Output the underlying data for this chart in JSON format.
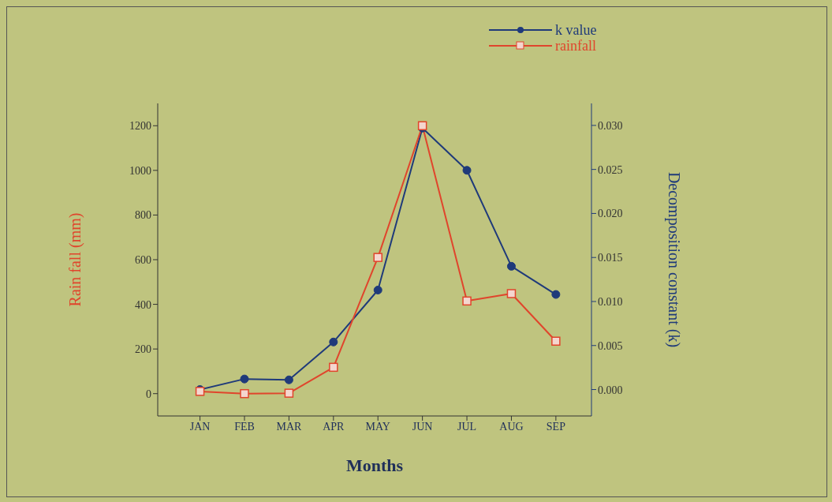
{
  "chart_data": {
    "type": "line",
    "xlabel": "Months",
    "ylabel": "Rain fall (mm)",
    "y2label": "Decomposition constant (k)",
    "categories": [
      "JAN",
      "FEB",
      "MAR",
      "APR",
      "MAY",
      "JUN",
      "JUL",
      "AUG",
      "SEP"
    ],
    "series": [
      {
        "name": "k value",
        "color": "#1f3a7a",
        "axis": "y2",
        "marker": "circle",
        "values": [
          0.0,
          0.0012,
          0.0011,
          0.0054,
          0.0113,
          0.0297,
          0.0249,
          0.014,
          0.0108
        ]
      },
      {
        "name": "rainfall",
        "color": "#e0452c",
        "marker": "square",
        "values": [
          10,
          0,
          2,
          118,
          610,
          1200,
          415,
          448,
          235
        ]
      }
    ],
    "ylim": [
      -100,
      1300
    ],
    "yticks": [
      0,
      200,
      400,
      600,
      800,
      1000,
      1200
    ],
    "y2lim": [
      -0.003,
      0.0325
    ],
    "y2ticks": [
      {
        "value": 0,
        "label": "0.000"
      },
      {
        "value": 0.005,
        "label": "0.005"
      },
      {
        "value": 0.01,
        "label": "0.010"
      },
      {
        "value": 0.015,
        "label": "0.015"
      },
      {
        "value": 0.02,
        "label": "0.020"
      },
      {
        "value": 0.025,
        "label": "0.025"
      },
      {
        "value": 0.03,
        "label": "0.030"
      }
    ],
    "legend": "top right",
    "grid": false,
    "line_style": "solid"
  }
}
